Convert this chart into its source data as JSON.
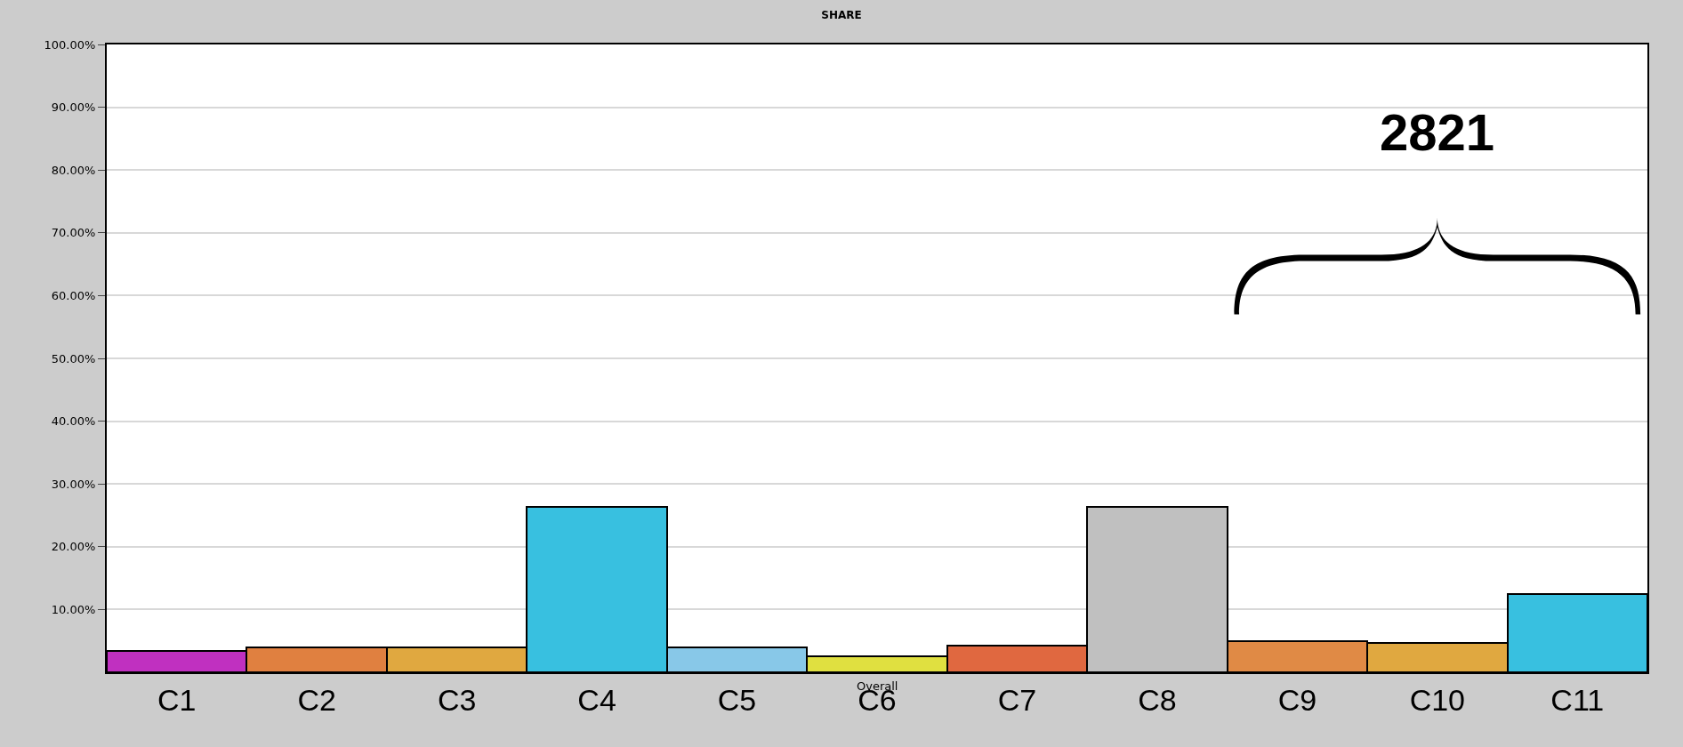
{
  "chart_data": {
    "type": "bar",
    "title": "SHARE",
    "categories": [
      "C1",
      "C2",
      "C3",
      "C4",
      "C5",
      "C6",
      "C7",
      "C8",
      "C9",
      "C10",
      "C11"
    ],
    "values": [
      3.4,
      4.0,
      4.0,
      26.4,
      4.0,
      2.5,
      4.3,
      26.4,
      5.0,
      4.7,
      12.4
    ],
    "colors": [
      "#c030c0",
      "#e08040",
      "#e0a840",
      "#38c0e0",
      "#88c8e8",
      "#e0e040",
      "#e06840",
      "#c0c0c0",
      "#e08a45",
      "#e0a840",
      "#38c0e0"
    ],
    "ylim": [
      0,
      100
    ],
    "yticks": [
      {
        "value": 10,
        "label": "10.00%"
      },
      {
        "value": 20,
        "label": "20.00%"
      },
      {
        "value": 30,
        "label": "30.00%"
      },
      {
        "value": 40,
        "label": "40.00%"
      },
      {
        "value": 50,
        "label": "50.00%"
      },
      {
        "value": 60,
        "label": "60.00%"
      },
      {
        "value": 70,
        "label": "70.00%"
      },
      {
        "value": 80,
        "label": "80.00%"
      },
      {
        "value": 90,
        "label": "90.00%"
      },
      {
        "value": 100,
        "label": "100.00%"
      }
    ],
    "grid": "y",
    "legend": false,
    "annotations": [
      "2821",
      "Overall"
    ]
  }
}
